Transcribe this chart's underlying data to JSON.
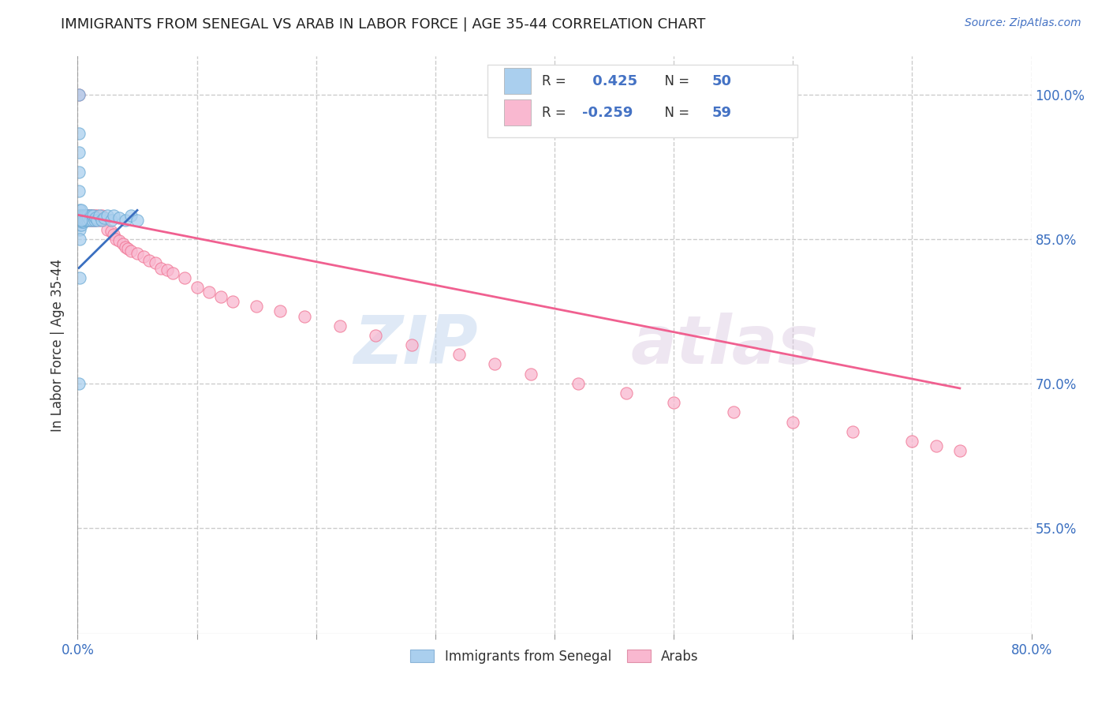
{
  "title": "IMMIGRANTS FROM SENEGAL VS ARAB IN LABOR FORCE | AGE 35-44 CORRELATION CHART",
  "source": "Source: ZipAtlas.com",
  "ylabel": "In Labor Force | Age 35-44",
  "x_min": 0.0,
  "x_max": 0.8,
  "y_min": 0.44,
  "y_max": 1.04,
  "x_ticks": [
    0.0,
    0.1,
    0.2,
    0.3,
    0.4,
    0.5,
    0.6,
    0.7,
    0.8
  ],
  "y_ticks": [
    0.55,
    0.7,
    0.85,
    1.0
  ],
  "y_tick_labels": [
    "55.0%",
    "70.0%",
    "85.0%",
    "100.0%"
  ],
  "senegal_R": 0.425,
  "senegal_N": 50,
  "arab_R": -0.259,
  "arab_N": 59,
  "senegal_color": "#aacfee",
  "arab_color": "#f9b8d0",
  "senegal_edge_color": "#6aaad4",
  "arab_edge_color": "#f07090",
  "senegal_line_color": "#3a6fc0",
  "arab_line_color": "#f06090",
  "watermark": "ZIPatlas",
  "senegal_x": [
    0.001,
    0.001,
    0.001,
    0.001,
    0.001,
    0.002,
    0.002,
    0.002,
    0.002,
    0.002,
    0.003,
    0.003,
    0.003,
    0.003,
    0.004,
    0.004,
    0.004,
    0.005,
    0.005,
    0.005,
    0.006,
    0.006,
    0.007,
    0.007,
    0.008,
    0.008,
    0.009,
    0.01,
    0.01,
    0.011,
    0.012,
    0.013,
    0.014,
    0.015,
    0.016,
    0.018,
    0.02,
    0.022,
    0.025,
    0.028,
    0.03,
    0.035,
    0.04,
    0.045,
    0.05,
    0.001,
    0.002,
    0.003,
    0.002,
    0.003
  ],
  "senegal_y": [
    1.0,
    0.96,
    0.94,
    0.92,
    0.9,
    0.88,
    0.875,
    0.87,
    0.865,
    0.86,
    0.875,
    0.872,
    0.868,
    0.865,
    0.875,
    0.87,
    0.868,
    0.875,
    0.87,
    0.868,
    0.875,
    0.87,
    0.875,
    0.87,
    0.875,
    0.87,
    0.872,
    0.875,
    0.87,
    0.875,
    0.87,
    0.875,
    0.87,
    0.872,
    0.87,
    0.875,
    0.87,
    0.872,
    0.875,
    0.87,
    0.875,
    0.872,
    0.87,
    0.875,
    0.87,
    0.7,
    0.81,
    0.87,
    0.85,
    0.88
  ],
  "arab_x": [
    0.001,
    0.002,
    0.003,
    0.004,
    0.005,
    0.006,
    0.007,
    0.008,
    0.009,
    0.01,
    0.011,
    0.012,
    0.013,
    0.014,
    0.015,
    0.016,
    0.018,
    0.02,
    0.022,
    0.025,
    0.028,
    0.03,
    0.032,
    0.035,
    0.038,
    0.04,
    0.042,
    0.045,
    0.05,
    0.055,
    0.06,
    0.065,
    0.07,
    0.075,
    0.08,
    0.09,
    0.1,
    0.11,
    0.12,
    0.13,
    0.15,
    0.17,
    0.19,
    0.22,
    0.25,
    0.28,
    0.32,
    0.35,
    0.38,
    0.42,
    0.46,
    0.5,
    0.55,
    0.6,
    0.65,
    0.7,
    0.72,
    0.001,
    0.74
  ],
  "arab_y": [
    0.875,
    0.875,
    0.87,
    0.875,
    0.87,
    0.875,
    0.87,
    0.875,
    0.87,
    0.875,
    0.87,
    0.875,
    0.87,
    0.875,
    0.87,
    0.875,
    0.87,
    0.875,
    0.87,
    0.86,
    0.858,
    0.855,
    0.85,
    0.848,
    0.845,
    0.842,
    0.84,
    0.838,
    0.835,
    0.832,
    0.828,
    0.825,
    0.82,
    0.818,
    0.815,
    0.81,
    0.8,
    0.795,
    0.79,
    0.785,
    0.78,
    0.775,
    0.77,
    0.76,
    0.75,
    0.74,
    0.73,
    0.72,
    0.71,
    0.7,
    0.69,
    0.68,
    0.67,
    0.66,
    0.65,
    0.64,
    0.635,
    1.0,
    0.63
  ],
  "senegal_line_x": [
    0.001,
    0.05
  ],
  "senegal_line_y": [
    0.82,
    0.88
  ],
  "arab_line_x": [
    0.001,
    0.74
  ],
  "arab_line_y": [
    0.875,
    0.695
  ]
}
